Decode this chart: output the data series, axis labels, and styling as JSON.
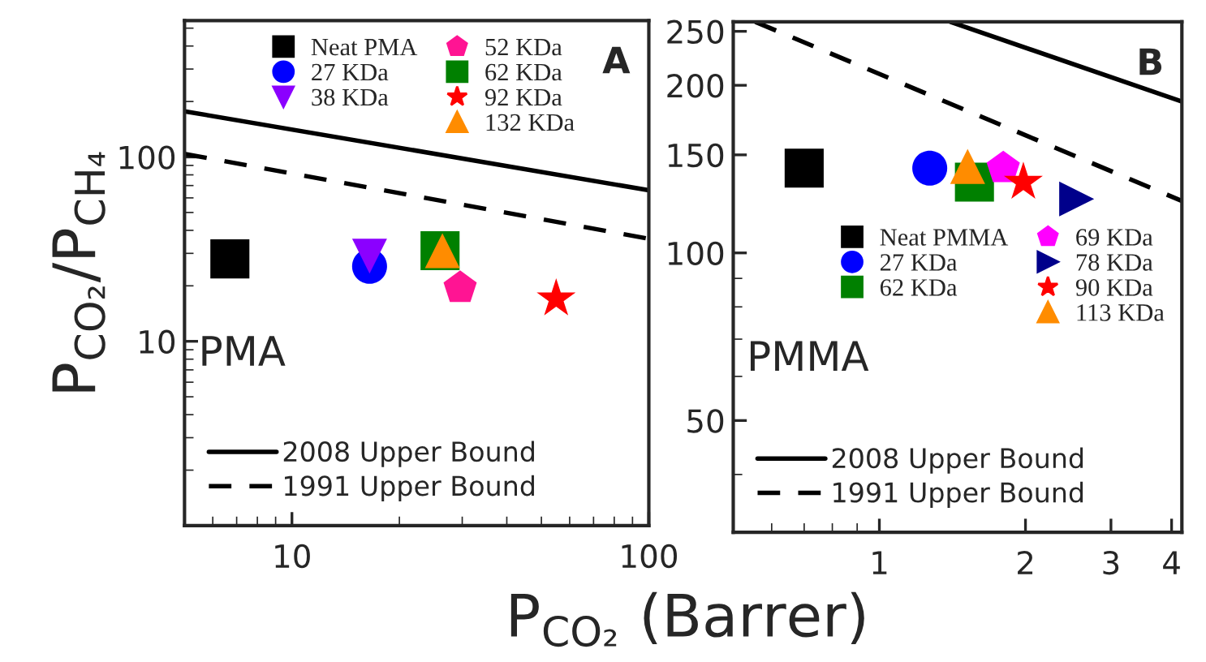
{
  "chart_data": [
    {
      "type": "scatter",
      "ylabel": "P$_{CO₂}$/P$_{CH₄}$",
      "xlabel": "P$_{CO₂}$ (Barrer)",
      "log": "xy",
      "xlim": [
        5,
        100
      ],
      "ylim": [
        1,
        550
      ],
      "xticks": [
        10,
        100
      ],
      "yticks": [
        10,
        100
      ],
      "grid": false,
      "legend": "top",
      "annotations": [
        "A",
        "PMA"
      ],
      "series": [
        {
          "name": "Neat PMA",
          "color": "#000000",
          "marker": "square",
          "x": [
            6.7
          ],
          "values": [
            28
          ]
        },
        {
          "name": "27 KDa",
          "color": "#0000ff",
          "marker": "circle",
          "x": [
            16.5
          ],
          "values": [
            25.5
          ]
        },
        {
          "name": "38 KDa",
          "color": "#8b00ff",
          "marker": "triangle_down",
          "x": [
            16.5
          ],
          "values": [
            29
          ]
        },
        {
          "name": "52 KDa",
          "color": "#ff1493",
          "x": [
            29.6
          ],
          "values": [
            19.5
          ]
        },
        {
          "name": "62 KDa",
          "color": "#008000",
          "marker": "square",
          "x": [
            26
          ],
          "values": [
            31
          ]
        },
        {
          "name": "92 KDa",
          "color": "#ff0000",
          "marker": "star",
          "x": [
            55
          ],
          "values": [
            17
          ]
        },
        {
          "name": "132 KDa",
          "color": "#ff8c00",
          "marker": "triangle",
          "x": [
            26.4
          ],
          "values": [
            31
          ]
        },
        {
          "name": "2008 Upper Bound",
          "type": "line",
          "color": "#000000",
          "line_style": "solid",
          "x": [
            5,
            100
          ],
          "values": [
            177,
            66
          ]
        },
        {
          "name": "1991 Upper Bound",
          "type": "line",
          "color": "#000000",
          "line_style": "dashed",
          "x": [
            5,
            100
          ],
          "values": [
            104,
            36
          ]
        }
      ]
    },
    {
      "type": "scatter",
      "log": "xy",
      "xlim": [
        0.5,
        4.2
      ],
      "ylim": [
        31.5,
        260
      ],
      "xticks": [
        1,
        2,
        3,
        4
      ],
      "yticks": [
        50,
        100,
        150,
        200,
        250
      ],
      "grid": false,
      "legend": "center right",
      "annotations": [
        "B",
        "PMMA"
      ],
      "series": [
        {
          "name": "Neat PMMA",
          "color": "#000000",
          "marker": "square",
          "x": [
            0.7
          ],
          "values": [
            142
          ]
        },
        {
          "name": "27 KDa",
          "color": "#0000ff",
          "marker": "circle",
          "x": [
            1.27
          ],
          "values": [
            142
          ]
        },
        {
          "name": "62 KDa",
          "color": "#008000",
          "marker": "square",
          "x": [
            1.57
          ],
          "values": [
            134
          ]
        },
        {
          "name": "69 KDa",
          "color": "#ff00ff",
          "x": [
            1.8
          ],
          "values": [
            142
          ]
        },
        {
          "name": "78 KDa",
          "color": "#00008b",
          "marker": "triangle_right",
          "x": [
            2.55
          ],
          "values": [
            125
          ]
        },
        {
          "name": "90 KDa",
          "color": "#ff0000",
          "marker": "star",
          "x": [
            1.98
          ],
          "values": [
            134
          ]
        },
        {
          "name": "113 KDa",
          "color": "#ff8c00",
          "marker": "triangle",
          "x": [
            1.52
          ],
          "values": [
            143
          ]
        },
        {
          "name": "2008 Upper Bound",
          "type": "line",
          "color": "#000000",
          "line_style": "solid",
          "x": [
            1.4,
            4.2
          ],
          "values": [
            260,
            187
          ]
        },
        {
          "name": "1991 Upper Bound",
          "type": "line",
          "color": "#000000",
          "line_style": "dashed",
          "x": [
            0.555,
            4.2
          ],
          "values": [
            260,
            124
          ]
        }
      ]
    }
  ]
}
